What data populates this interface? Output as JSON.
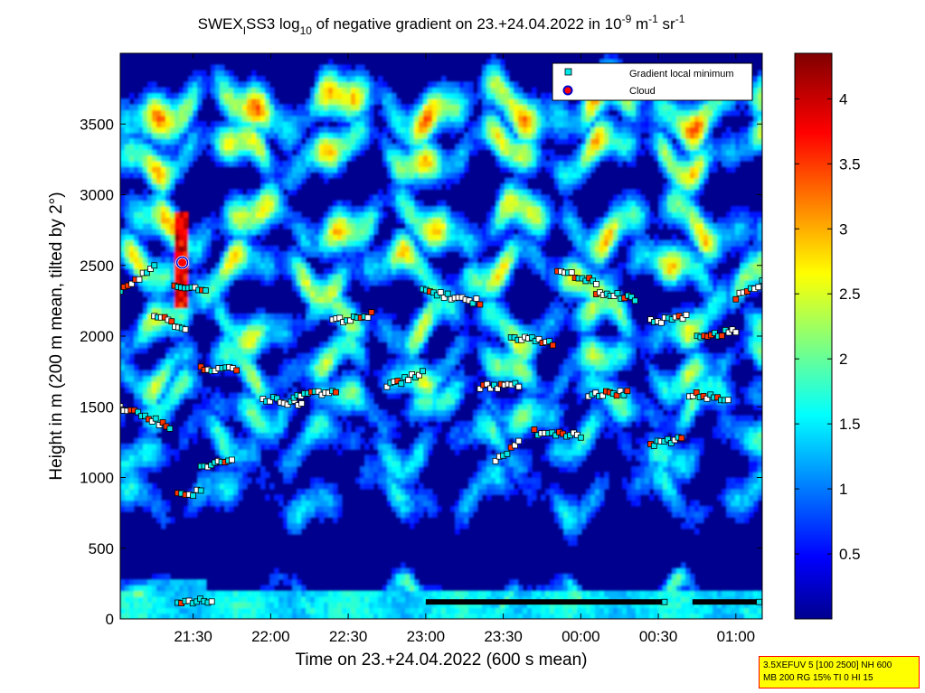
{
  "chart_data": {
    "type": "heatmap",
    "title": {
      "main": "SWEX",
      "main_sub": "I",
      "main_b": "SS3 log",
      "main_sub2": "10",
      "main_c": " of negative gradient on 23.+24.04.2022 in 10",
      "exp1": "-9",
      "unit_a": " m",
      "exp2": "-1",
      "unit_b": " sr",
      "exp3": "-1"
    },
    "xlabel": "Time on 23.+24.04.2022 (600 s mean)",
    "ylabel": "Height in m (200 m mean, tilted by 2°)",
    "x_ticks": [
      "21:30",
      "22:00",
      "22:30",
      "23:00",
      "23:30",
      "00:00",
      "00:30",
      "01:00"
    ],
    "x_tick_hours": [
      21.5,
      22.0,
      22.5,
      23.0,
      23.5,
      24.0,
      24.5,
      25.0
    ],
    "xlim_hours": [
      21.03,
      25.17
    ],
    "y_ticks": [
      "0",
      "500",
      "1000",
      "1500",
      "2000",
      "2500",
      "3000",
      "3500"
    ],
    "y_tick_values": [
      0,
      500,
      1000,
      1500,
      2000,
      2500,
      3000,
      3500
    ],
    "ylim": [
      0,
      4000
    ],
    "colorbar": {
      "range": [
        0,
        4.35
      ],
      "ticks": [
        "0.5",
        "1",
        "1.5",
        "2",
        "2.5",
        "3",
        "3.5",
        "4"
      ],
      "tick_values": [
        0.5,
        1,
        1.5,
        2,
        2.5,
        3,
        3.5,
        4
      ],
      "colormap": "jet"
    },
    "legend": {
      "placement": "top-right",
      "entries": [
        {
          "label": "Gradient local minimum",
          "marker": "square",
          "color": "#00e5e5"
        },
        {
          "label": "Cloud",
          "marker": "circle",
          "color": "#ff0000",
          "edge": "#0000cc"
        }
      ]
    },
    "layers": [
      {
        "height": 3620,
        "thickness": 170,
        "intensity": 2.8
      },
      {
        "height": 3300,
        "thickness": 150,
        "intensity": 2.5
      },
      {
        "height": 2800,
        "thickness": 160,
        "intensity": 2.5
      },
      {
        "height": 2450,
        "thickness": 150,
        "intensity": 2.4
      },
      {
        "height": 2100,
        "thickness": 150,
        "intensity": 2.2
      },
      {
        "height": 1780,
        "thickness": 140,
        "intensity": 2.1
      },
      {
        "height": 1520,
        "thickness": 150,
        "intensity": 1.8
      },
      {
        "height": 1230,
        "thickness": 150,
        "intensity": 1.6
      },
      {
        "height": 880,
        "thickness": 160,
        "intensity": 1.4
      },
      {
        "height": 120,
        "thickness": 90,
        "intensity": 1.7
      }
    ],
    "cloud": {
      "time_hours": 21.43,
      "height": 2520
    },
    "minima_tracks": [
      {
        "t0": 21.03,
        "t1": 21.25,
        "h0": 2320,
        "h1": 2480
      },
      {
        "t0": 21.25,
        "t1": 21.45,
        "h0": 2150,
        "h1": 2050
      },
      {
        "t0": 21.38,
        "t1": 21.58,
        "h0": 2340,
        "h1": 2320
      },
      {
        "t0": 21.55,
        "t1": 21.78,
        "h0": 1770,
        "h1": 1760
      },
      {
        "t0": 21.03,
        "t1": 21.35,
        "h0": 1500,
        "h1": 1360
      },
      {
        "t0": 21.4,
        "t1": 21.55,
        "h0": 870,
        "h1": 900
      },
      {
        "t0": 21.55,
        "t1": 21.75,
        "h0": 1080,
        "h1": 1120
      },
      {
        "t0": 21.95,
        "t1": 22.2,
        "h0": 1560,
        "h1": 1520
      },
      {
        "t0": 22.15,
        "t1": 22.42,
        "h0": 1580,
        "h1": 1600
      },
      {
        "t0": 22.4,
        "t1": 22.65,
        "h0": 2100,
        "h1": 2150
      },
      {
        "t0": 22.75,
        "t1": 22.98,
        "h0": 1640,
        "h1": 1740
      },
      {
        "t0": 22.98,
        "t1": 23.35,
        "h0": 2320,
        "h1": 2240
      },
      {
        "t0": 23.35,
        "t1": 23.6,
        "h0": 1640,
        "h1": 1650
      },
      {
        "t0": 23.55,
        "t1": 23.82,
        "h0": 2000,
        "h1": 1940
      },
      {
        "t0": 23.7,
        "t1": 24.0,
        "h0": 1320,
        "h1": 1300
      },
      {
        "t0": 23.85,
        "t1": 24.1,
        "h0": 2470,
        "h1": 2380
      },
      {
        "t0": 24.05,
        "t1": 24.3,
        "h0": 1590,
        "h1": 1600
      },
      {
        "t0": 24.1,
        "t1": 24.35,
        "h0": 2300,
        "h1": 2270
      },
      {
        "t0": 24.45,
        "t1": 24.68,
        "h0": 2100,
        "h1": 2140
      },
      {
        "t0": 24.7,
        "t1": 24.95,
        "h0": 1590,
        "h1": 1560
      },
      {
        "t0": 24.75,
        "t1": 25.0,
        "h0": 1990,
        "h1": 2040
      },
      {
        "t0": 25.0,
        "t1": 25.17,
        "h0": 2280,
        "h1": 2380
      },
      {
        "t0": 21.4,
        "t1": 21.62,
        "h0": 120,
        "h1": 130
      },
      {
        "t0": 23.45,
        "t1": 23.6,
        "h0": 1120,
        "h1": 1250
      },
      {
        "t0": 24.45,
        "t1": 24.65,
        "h0": 1230,
        "h1": 1280
      }
    ],
    "ground_bars": [
      {
        "t0": 23.0,
        "t1": 24.54,
        "height": 120
      },
      {
        "t0": 24.72,
        "t1": 25.15,
        "height": 120
      }
    ]
  },
  "stamp": {
    "line1": "3.5XEFUV 5 [100 2500] NH 600",
    "line2": "MB 200 RG 15% TI 0 HI 15"
  }
}
